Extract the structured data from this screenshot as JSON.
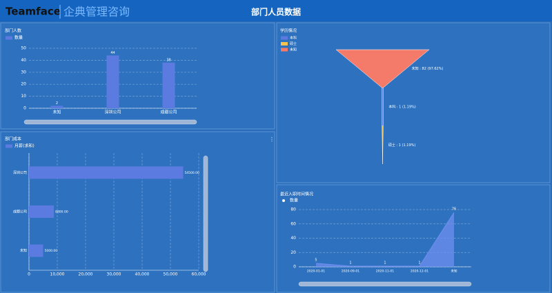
{
  "header": {
    "brand": "Teamface",
    "company": "企典管理咨询",
    "title": "部门人员数据"
  },
  "chart_data": [
    {
      "type": "bar",
      "title": "部门人数",
      "categories": [
        "未知",
        "深圳公司",
        "成都公司"
      ],
      "series": [
        {
          "name": "数量",
          "color": "#5b7be0",
          "values": [
            2,
            44,
            38
          ]
        }
      ],
      "ylim": [
        0,
        50
      ],
      "yticks": [
        0,
        10,
        20,
        30,
        40,
        50
      ],
      "grid": true
    },
    {
      "type": "barh",
      "title": "部门成本",
      "categories": [
        "深圳公司",
        "成都公司",
        "未知"
      ],
      "series": [
        {
          "name": "月薪(求和)",
          "color": "#5b7be0",
          "values": [
            54500,
            8800,
            5000
          ],
          "value_labels": [
            "54500.00",
            "8800.00",
            "5000.00"
          ]
        }
      ],
      "xlim": [
        0,
        60000
      ],
      "xticks": [
        0,
        {
          "value": 10000,
          "label": "10,000"
        },
        {
          "value": 20000,
          "label": "20,000"
        },
        {
          "value": 30000,
          "label": "30,000"
        },
        {
          "value": 40000,
          "label": "40,000"
        },
        {
          "value": 50000,
          "label": "50,000"
        },
        {
          "value": 60000,
          "label": "60,000"
        }
      ],
      "grid": true
    },
    {
      "type": "funnel",
      "title": "学历情况",
      "categories": [
        "本科",
        "硕士",
        "未知"
      ],
      "colors": [
        "#5b7be0",
        "#f3c24f",
        "#f47a6a"
      ],
      "values": [
        1,
        1,
        82
      ],
      "value_labels": [
        "本科 : 1 (1.19%)",
        "硕士 : 1 (1.19%)",
        "未知 : 82 (97.62%)"
      ]
    },
    {
      "type": "area",
      "title": "最近入职时间情况",
      "categories": [
        "2020-01-01",
        "2020-09-01",
        "2020-11-01",
        "2020-12-01",
        "未知"
      ],
      "series": [
        {
          "name": "数量",
          "color": "#6f8ff0",
          "values": [
            5,
            1,
            1,
            1,
            76
          ]
        }
      ],
      "ylim": [
        0,
        80
      ],
      "yticks": [
        0,
        20,
        40,
        60,
        80
      ],
      "grid": true
    }
  ]
}
